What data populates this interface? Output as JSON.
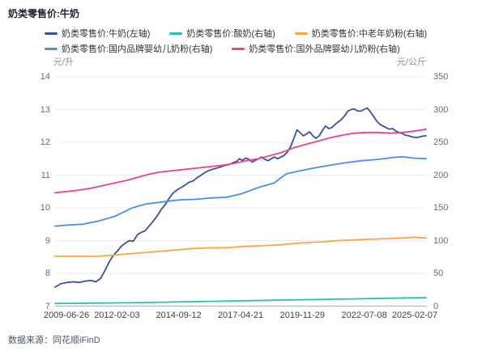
{
  "title": "奶类零售价:牛奶",
  "source": "数据来源：同花顺iFinD",
  "legend_rows": [
    [
      0,
      1,
      2
    ],
    [
      3,
      4
    ]
  ],
  "colors": {
    "milk": "#3D4F9D",
    "yogurt": "#2EC0AF",
    "senior_powder": "#F7A64A",
    "domestic_infant": "#4B90DF",
    "foreign_infant": "#E2478F",
    "grid": "#ECECF4",
    "axis_line": "#A8AEC0"
  },
  "chart_data": {
    "type": "line",
    "title": "奶类零售价:牛奶",
    "left_axis": {
      "unit": "元/升",
      "min": 7,
      "max": 14,
      "ticks": [
        7,
        8,
        9,
        10,
        11,
        12,
        13,
        14
      ]
    },
    "right_axis": {
      "unit": "元/公斤",
      "min": 0,
      "max": 350,
      "ticks": [
        0,
        50,
        100,
        150,
        200,
        250,
        300,
        350
      ]
    },
    "x_ticks": [
      "2009-06-26",
      "2012-02-03",
      "2014-09-12",
      "2017-04-21",
      "2019-11-29",
      "2022-07-08",
      "2025-02-07"
    ],
    "grid": true,
    "legend_position": "top",
    "series": [
      {
        "name": "奶类零售价:牛奶(左轴)",
        "axis": "left",
        "color": "#3D4F9D",
        "points": [
          [
            0,
            7.58
          ],
          [
            1.5,
            7.68
          ],
          [
            3.2,
            7.72
          ],
          [
            4.9,
            7.74
          ],
          [
            6.5,
            7.72
          ],
          [
            8,
            7.76
          ],
          [
            9.7,
            7.78
          ],
          [
            11,
            7.74
          ],
          [
            12.3,
            7.85
          ],
          [
            13.5,
            8.1
          ],
          [
            14.6,
            8.35
          ],
          [
            15.7,
            8.55
          ],
          [
            16.8,
            8.68
          ],
          [
            17.8,
            8.82
          ],
          [
            18.9,
            8.92
          ],
          [
            20,
            9.0
          ],
          [
            21.1,
            8.98
          ],
          [
            22.2,
            9.18
          ],
          [
            23.2,
            9.25
          ],
          [
            24.3,
            9.3
          ],
          [
            25.4,
            9.45
          ],
          [
            26.5,
            9.6
          ],
          [
            27.5,
            9.75
          ],
          [
            28.6,
            9.95
          ],
          [
            29.7,
            10.1
          ],
          [
            30.8,
            10.3
          ],
          [
            31.8,
            10.45
          ],
          [
            32.9,
            10.55
          ],
          [
            34,
            10.62
          ],
          [
            35.1,
            10.7
          ],
          [
            36.1,
            10.78
          ],
          [
            37.2,
            10.82
          ],
          [
            38.3,
            10.92
          ],
          [
            39.4,
            11.0
          ],
          [
            40.4,
            11.08
          ],
          [
            41.5,
            11.14
          ],
          [
            42.6,
            11.18
          ],
          [
            43.7,
            11.22
          ],
          [
            44.7,
            11.25
          ],
          [
            45.8,
            11.3
          ],
          [
            46.9,
            11.32
          ],
          [
            48,
            11.38
          ],
          [
            49,
            11.42
          ],
          [
            49.7,
            11.5
          ],
          [
            50.5,
            11.45
          ],
          [
            51.4,
            11.52
          ],
          [
            52.3,
            11.48
          ],
          [
            53.1,
            11.4
          ],
          [
            54,
            11.45
          ],
          [
            54.8,
            11.5
          ],
          [
            55.7,
            11.55
          ],
          [
            56.6,
            11.48
          ],
          [
            57.4,
            11.44
          ],
          [
            58.3,
            11.5
          ],
          [
            59.1,
            11.55
          ],
          [
            60,
            11.5
          ],
          [
            60.9,
            11.55
          ],
          [
            61.7,
            11.6
          ],
          [
            62.6,
            11.7
          ],
          [
            63.4,
            11.85
          ],
          [
            64.3,
            12.1
          ],
          [
            65.2,
            12.38
          ],
          [
            66,
            12.3
          ],
          [
            66.9,
            12.2
          ],
          [
            67.7,
            12.25
          ],
          [
            68.6,
            12.32
          ],
          [
            69.5,
            12.2
          ],
          [
            70.3,
            12.12
          ],
          [
            71.2,
            12.2
          ],
          [
            72,
            12.35
          ],
          [
            72.9,
            12.5
          ],
          [
            73.8,
            12.42
          ],
          [
            74.6,
            12.45
          ],
          [
            75.5,
            12.55
          ],
          [
            76.3,
            12.62
          ],
          [
            77.2,
            12.7
          ],
          [
            78.1,
            12.82
          ],
          [
            78.9,
            12.95
          ],
          [
            79.8,
            13.0
          ],
          [
            80.6,
            13.02
          ],
          [
            81.5,
            12.96
          ],
          [
            82.4,
            12.95
          ],
          [
            83.2,
            13.0
          ],
          [
            84.1,
            13.05
          ],
          [
            84.9,
            12.95
          ],
          [
            85.8,
            12.8
          ],
          [
            86.7,
            12.65
          ],
          [
            87.5,
            12.55
          ],
          [
            88.4,
            12.5
          ],
          [
            89.2,
            12.45
          ],
          [
            90.1,
            12.4
          ],
          [
            91,
            12.42
          ],
          [
            91.8,
            12.35
          ],
          [
            92.7,
            12.3
          ],
          [
            93.5,
            12.28
          ],
          [
            94.4,
            12.22
          ],
          [
            95.3,
            12.2
          ],
          [
            96.1,
            12.17
          ],
          [
            97,
            12.15
          ],
          [
            97.8,
            12.15
          ],
          [
            98.7,
            12.18
          ],
          [
            100,
            12.2
          ]
        ]
      },
      {
        "name": "奶类零售价:酸奶(右轴)",
        "axis": "right",
        "color": "#2EC0AF",
        "points": [
          [
            0,
            4
          ],
          [
            10,
            4.5
          ],
          [
            20,
            5
          ],
          [
            30,
            6
          ],
          [
            40,
            7
          ],
          [
            50,
            8
          ],
          [
            60,
            9
          ],
          [
            70,
            10
          ],
          [
            80,
            11
          ],
          [
            90,
            12
          ],
          [
            100,
            13
          ]
        ]
      },
      {
        "name": "奶类零售价:中老年奶粉(右轴)",
        "axis": "right",
        "color": "#F7A64A",
        "points": [
          [
            0,
            76
          ],
          [
            6.5,
            76
          ],
          [
            11,
            76
          ],
          [
            14,
            77
          ],
          [
            16.1,
            78
          ],
          [
            20.4,
            80
          ],
          [
            24.7,
            82
          ],
          [
            29,
            84
          ],
          [
            33.3,
            86
          ],
          [
            37.6,
            88
          ],
          [
            41.9,
            89
          ],
          [
            46.2,
            89
          ],
          [
            50.5,
            91
          ],
          [
            54.8,
            92
          ],
          [
            59.1,
            93
          ],
          [
            63.4,
            95
          ],
          [
            67.7,
            97
          ],
          [
            72,
            98
          ],
          [
            76.3,
            100
          ],
          [
            80.6,
            101
          ],
          [
            84.9,
            102
          ],
          [
            89.2,
            103
          ],
          [
            93.5,
            104
          ],
          [
            96.8,
            105
          ],
          [
            100,
            104
          ]
        ]
      },
      {
        "name": "奶类零售价:国内品牌婴幼儿奶粉(右轴)",
        "axis": "right",
        "color": "#4B90DF",
        "points": [
          [
            0,
            122
          ],
          [
            4,
            124
          ],
          [
            7.5,
            125
          ],
          [
            11.8,
            130
          ],
          [
            16.1,
            137
          ],
          [
            18.3,
            143
          ],
          [
            20.4,
            149
          ],
          [
            22.6,
            153
          ],
          [
            24.7,
            156
          ],
          [
            29,
            159
          ],
          [
            33.3,
            162
          ],
          [
            37.6,
            163
          ],
          [
            41.9,
            165
          ],
          [
            46.2,
            166
          ],
          [
            50.5,
            172
          ],
          [
            54.8,
            181
          ],
          [
            59.1,
            188
          ],
          [
            60.9,
            196
          ],
          [
            62.4,
            202
          ],
          [
            65.6,
            206
          ],
          [
            70,
            211
          ],
          [
            74.2,
            215
          ],
          [
            78.5,
            219
          ],
          [
            82.8,
            222
          ],
          [
            87,
            224
          ],
          [
            91.4,
            227
          ],
          [
            93.5,
            228
          ],
          [
            96.3,
            226
          ],
          [
            100,
            225
          ]
        ]
      },
      {
        "name": "奶类零售价:国外品牌婴幼儿奶粉(右轴)",
        "axis": "right",
        "color": "#E2478F",
        "points": [
          [
            0,
            173
          ],
          [
            3.2,
            175
          ],
          [
            6.5,
            177
          ],
          [
            9.7,
            180
          ],
          [
            12.9,
            184
          ],
          [
            16.1,
            188
          ],
          [
            19.4,
            192
          ],
          [
            22.6,
            197
          ],
          [
            25.8,
            202
          ],
          [
            29,
            205
          ],
          [
            32.3,
            207
          ],
          [
            35.5,
            209
          ],
          [
            38.7,
            211
          ],
          [
            41.9,
            213
          ],
          [
            45.2,
            215
          ],
          [
            48.4,
            218
          ],
          [
            51.6,
            222
          ],
          [
            54.8,
            225
          ],
          [
            58.1,
            230
          ],
          [
            61.3,
            235
          ],
          [
            64.5,
            242
          ],
          [
            67.7,
            247
          ],
          [
            71,
            252
          ],
          [
            74.2,
            257
          ],
          [
            77.4,
            261
          ],
          [
            80.6,
            264
          ],
          [
            83.9,
            265
          ],
          [
            87.1,
            265
          ],
          [
            90.3,
            264
          ],
          [
            93.5,
            265
          ],
          [
            96.8,
            267
          ],
          [
            100,
            270
          ]
        ]
      }
    ]
  }
}
